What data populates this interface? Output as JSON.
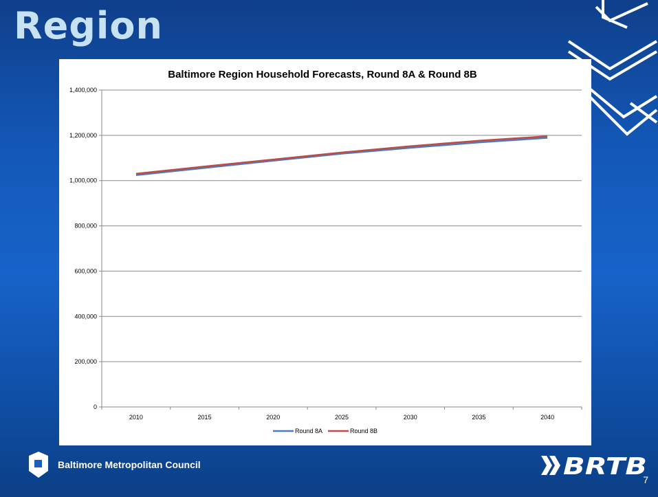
{
  "slide": {
    "title": "Region",
    "organization": "Baltimore Metropolitan Council",
    "page_number": "7",
    "logo_right_text": "BRTB",
    "colors": {
      "background": "#1358b8",
      "title": "#c7e2f3"
    }
  },
  "chart_data": {
    "type": "line",
    "title": "Baltimore Region Household Forecasts, Round 8A & Round 8B",
    "x": [
      2010,
      2015,
      2020,
      2025,
      2030,
      2035,
      2040
    ],
    "x_tick_labels": [
      "2010",
      "2015",
      "2020",
      "2025",
      "2030",
      "2035",
      "2040"
    ],
    "ylim": [
      0,
      1400000
    ],
    "y_ticks": [
      0,
      200000,
      400000,
      600000,
      800000,
      1000000,
      1200000,
      1400000
    ],
    "y_tick_labels": [
      "0",
      "200,000",
      "400,000",
      "600,000",
      "800,000",
      "1,000,000",
      "1,200,000",
      "1,400,000"
    ],
    "grid": true,
    "legend_position": "bottom",
    "series": [
      {
        "name": "Round 8A",
        "color": "#4a7ebb",
        "values": [
          1024000,
          1056000,
          1088000,
          1119000,
          1145000,
          1169000,
          1189000
        ]
      },
      {
        "name": "Round 8B",
        "color": "#be4b48",
        "values": [
          1030000,
          1062000,
          1093000,
          1124000,
          1152000,
          1176000,
          1196000
        ]
      }
    ]
  }
}
